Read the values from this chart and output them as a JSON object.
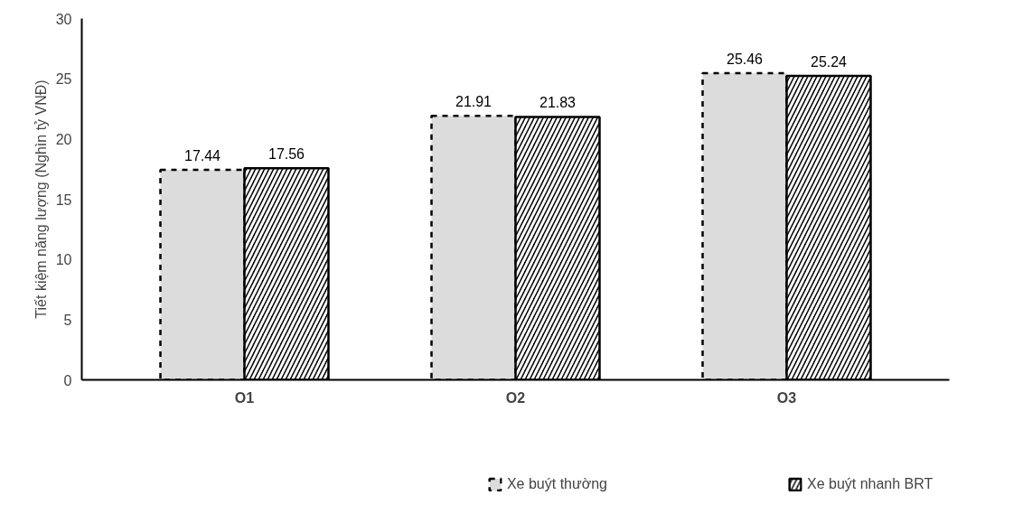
{
  "chart_data": {
    "type": "bar",
    "ylabel": "Tiết kiệm năng lượng (Nghìn tỷ VNĐ)",
    "categories": [
      "O1",
      "O2",
      "O3"
    ],
    "series": [
      {
        "name": "Xe buýt thường",
        "color": "#dcdcdc",
        "line_style": "dashed",
        "values": [
          17.44,
          21.91,
          25.46
        ]
      },
      {
        "name": "Xe buýt nhanh BRT",
        "color": "#000000",
        "line_style": "solid",
        "values": [
          17.56,
          21.83,
          25.24
        ]
      }
    ],
    "ylim": [
      0,
      30
    ],
    "yticks": [
      0,
      5,
      10,
      15,
      20,
      25,
      30
    ],
    "grid": false,
    "legend": "bottom",
    "data_labels": true
  }
}
